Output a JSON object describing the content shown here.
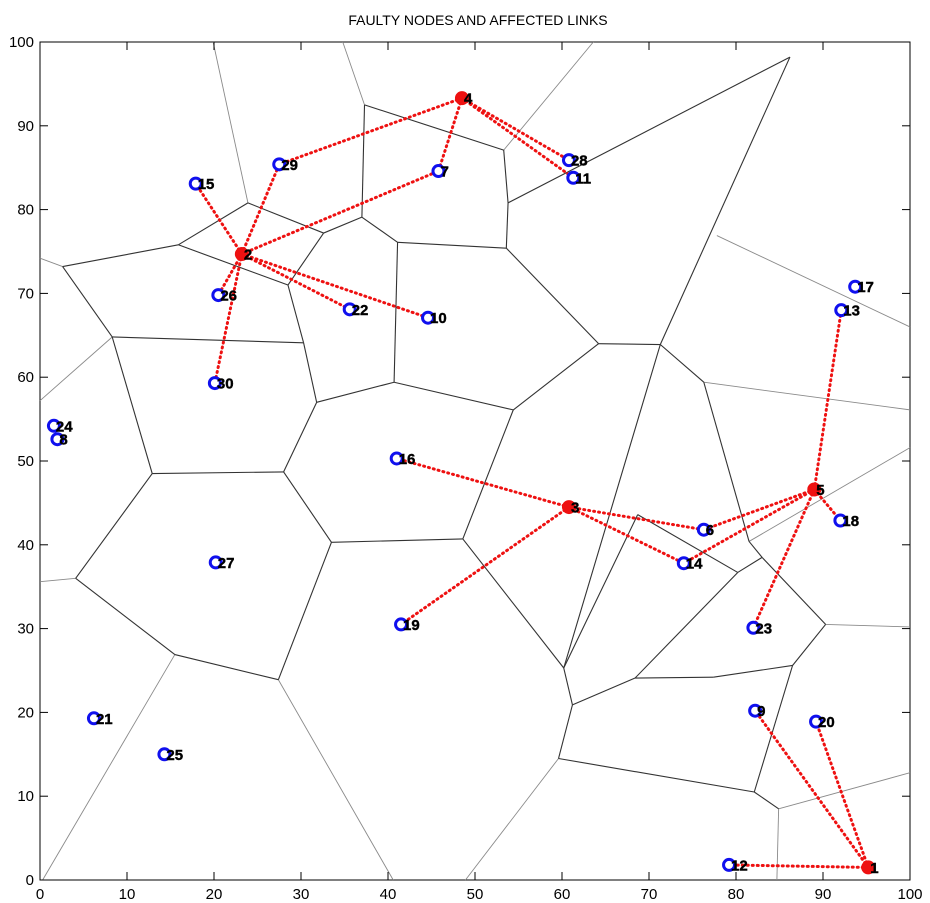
{
  "chart_data": {
    "type": "scatter",
    "title": "FAULTY NODES AND AFFECTED LINKS",
    "xlabel": "",
    "ylabel": "",
    "xlim": [
      0,
      100
    ],
    "ylim": [
      0,
      100
    ],
    "xticks": [
      0,
      10,
      20,
      30,
      40,
      50,
      60,
      70,
      80,
      90,
      100
    ],
    "yticks": [
      0,
      10,
      20,
      30,
      40,
      50,
      60,
      70,
      80,
      90,
      100
    ],
    "grid": false,
    "colors": {
      "normal": "#1010ee",
      "faulty": "#ee1111",
      "link": "#ee1111",
      "cell_edge": "#333333"
    },
    "nodes": [
      {
        "id": "1",
        "label": "1",
        "x": 95.2,
        "y": 1.5,
        "faulty": true
      },
      {
        "id": "2",
        "label": "2",
        "x": 23.2,
        "y": 74.7,
        "faulty": true
      },
      {
        "id": "3",
        "label": "3",
        "x": 60.8,
        "y": 44.5,
        "faulty": true
      },
      {
        "id": "4",
        "label": "4",
        "x": 48.5,
        "y": 93.3,
        "faulty": true
      },
      {
        "id": "5",
        "label": "5",
        "x": 89.0,
        "y": 46.6,
        "faulty": true
      },
      {
        "id": "6",
        "label": "6",
        "x": 76.3,
        "y": 41.8,
        "faulty": false
      },
      {
        "id": "7",
        "label": "7",
        "x": 45.8,
        "y": 84.6,
        "faulty": false
      },
      {
        "id": "8",
        "label": "8",
        "x": 2.0,
        "y": 52.6,
        "faulty": false
      },
      {
        "id": "9",
        "label": "9",
        "x": 82.2,
        "y": 20.2,
        "faulty": false
      },
      {
        "id": "10",
        "label": "10",
        "x": 44.6,
        "y": 67.1,
        "faulty": false
      },
      {
        "id": "11",
        "label": "11",
        "x": 61.3,
        "y": 83.8,
        "faulty": false
      },
      {
        "id": "12",
        "label": "12",
        "x": 79.2,
        "y": 1.8,
        "faulty": false
      },
      {
        "id": "13",
        "label": "13",
        "x": 92.1,
        "y": 68.0,
        "faulty": false
      },
      {
        "id": "14",
        "label": "14",
        "x": 74.0,
        "y": 37.8,
        "faulty": false
      },
      {
        "id": "15",
        "label": "15",
        "x": 17.9,
        "y": 83.1,
        "faulty": false
      },
      {
        "id": "16",
        "label": "16",
        "x": 41.0,
        "y": 50.3,
        "faulty": false
      },
      {
        "id": "17",
        "label": "17",
        "x": 93.7,
        "y": 70.8,
        "faulty": false
      },
      {
        "id": "18",
        "label": "18",
        "x": 92.0,
        "y": 42.9,
        "faulty": false
      },
      {
        "id": "19",
        "label": "19",
        "x": 41.5,
        "y": 30.5,
        "faulty": false
      },
      {
        "id": "20",
        "label": "20",
        "x": 89.2,
        "y": 18.9,
        "faulty": false
      },
      {
        "id": "21",
        "label": "21",
        "x": 6.2,
        "y": 19.3,
        "faulty": false
      },
      {
        "id": "22",
        "label": "22",
        "x": 35.6,
        "y": 68.1,
        "faulty": false
      },
      {
        "id": "23",
        "label": "23",
        "x": 82.0,
        "y": 30.1,
        "faulty": false
      },
      {
        "id": "24",
        "label": "24",
        "x": 1.6,
        "y": 54.2,
        "faulty": false
      },
      {
        "id": "25",
        "label": "25",
        "x": 14.3,
        "y": 15.0,
        "faulty": false
      },
      {
        "id": "26",
        "label": "26",
        "x": 20.5,
        "y": 69.8,
        "faulty": false
      },
      {
        "id": "27",
        "label": "27",
        "x": 20.2,
        "y": 37.9,
        "faulty": false
      },
      {
        "id": "28",
        "label": "28",
        "x": 60.8,
        "y": 85.9,
        "faulty": false
      },
      {
        "id": "29",
        "label": "29",
        "x": 27.5,
        "y": 85.4,
        "faulty": false
      },
      {
        "id": "30",
        "label": "30",
        "x": 20.1,
        "y": 59.3,
        "faulty": false
      }
    ],
    "links": [
      [
        "4",
        "29"
      ],
      [
        "4",
        "7"
      ],
      [
        "4",
        "28"
      ],
      [
        "4",
        "11"
      ],
      [
        "2",
        "15"
      ],
      [
        "2",
        "29"
      ],
      [
        "2",
        "7"
      ],
      [
        "2",
        "26"
      ],
      [
        "2",
        "22"
      ],
      [
        "2",
        "10"
      ],
      [
        "2",
        "30"
      ],
      [
        "3",
        "16"
      ],
      [
        "3",
        "19"
      ],
      [
        "3",
        "6"
      ],
      [
        "3",
        "14"
      ],
      [
        "5",
        "13"
      ],
      [
        "5",
        "6"
      ],
      [
        "5",
        "14"
      ],
      [
        "5",
        "18"
      ],
      [
        "5",
        "23"
      ],
      [
        "1",
        "9"
      ],
      [
        "1",
        "20"
      ],
      [
        "1",
        "12"
      ]
    ],
    "voronoi_edges": [
      [
        [
          2.6,
          73.2
        ],
        [
          15.9,
          75.8
        ]
      ],
      [
        [
          15.9,
          75.8
        ],
        [
          23.9,
          80.8
        ]
      ],
      [
        [
          23.9,
          80.8
        ],
        [
          32.6,
          77.2
        ]
      ],
      [
        [
          32.6,
          77.2
        ],
        [
          37.0,
          79.1
        ]
      ],
      [
        [
          37.0,
          79.1
        ],
        [
          41.1,
          76.1
        ]
      ],
      [
        [
          41.1,
          76.1
        ],
        [
          53.6,
          75.4
        ]
      ],
      [
        [
          53.6,
          75.4
        ],
        [
          64.2,
          64.0
        ]
      ],
      [
        [
          64.2,
          64.0
        ],
        [
          71.3,
          63.9
        ]
      ],
      [
        [
          71.3,
          63.9
        ],
        [
          76.3,
          59.4
        ]
      ],
      [
        [
          76.3,
          59.4
        ],
        [
          81.5,
          40.4
        ]
      ],
      [
        [
          81.5,
          40.4
        ],
        [
          83.0,
          38.5
        ]
      ],
      [
        [
          83.0,
          38.5
        ],
        [
          90.3,
          30.5
        ]
      ],
      [
        [
          90.3,
          30.5
        ],
        [
          86.5,
          25.6
        ]
      ],
      [
        [
          86.5,
          25.6
        ],
        [
          77.4,
          24.2
        ]
      ],
      [
        [
          77.4,
          24.2
        ],
        [
          68.4,
          24.1
        ]
      ],
      [
        [
          68.4,
          24.1
        ],
        [
          61.2,
          20.9
        ]
      ],
      [
        [
          61.2,
          20.9
        ],
        [
          59.6,
          14.5
        ]
      ],
      [
        [
          59.6,
          14.5
        ],
        [
          82.1,
          10.5
        ]
      ],
      [
        [
          82.1,
          10.5
        ],
        [
          84.9,
          8.5
        ]
      ],
      [
        [
          82.1,
          10.5
        ],
        [
          86.5,
          25.6
        ]
      ],
      [
        [
          2.6,
          73.2
        ],
        [
          8.3,
          64.8
        ]
      ],
      [
        [
          8.3,
          64.8
        ],
        [
          30.3,
          64.1
        ]
      ],
      [
        [
          30.3,
          64.1
        ],
        [
          31.8,
          57.0
        ]
      ],
      [
        [
          31.8,
          57.0
        ],
        [
          40.7,
          59.4
        ]
      ],
      [
        [
          40.7,
          59.4
        ],
        [
          54.4,
          56.1
        ]
      ],
      [
        [
          54.4,
          56.1
        ],
        [
          64.2,
          64.0
        ]
      ],
      [
        [
          8.3,
          64.8
        ],
        [
          12.9,
          48.5
        ]
      ],
      [
        [
          12.9,
          48.5
        ],
        [
          28.0,
          48.7
        ]
      ],
      [
        [
          28.0,
          48.7
        ],
        [
          31.8,
          57.0
        ]
      ],
      [
        [
          12.9,
          48.5
        ],
        [
          4.1,
          36.0
        ]
      ],
      [
        [
          4.1,
          36.0
        ],
        [
          15.5,
          26.9
        ]
      ],
      [
        [
          15.5,
          26.9
        ],
        [
          27.4,
          23.9
        ]
      ],
      [
        [
          27.4,
          23.9
        ],
        [
          33.5,
          40.3
        ]
      ],
      [
        [
          33.5,
          40.3
        ],
        [
          28.0,
          48.7
        ]
      ],
      [
        [
          33.5,
          40.3
        ],
        [
          48.6,
          40.7
        ]
      ],
      [
        [
          48.6,
          40.7
        ],
        [
          54.4,
          56.1
        ]
      ],
      [
        [
          48.6,
          40.7
        ],
        [
          60.2,
          25.3
        ]
      ],
      [
        [
          60.2,
          25.3
        ],
        [
          61.2,
          20.9
        ]
      ],
      [
        [
          60.2,
          25.3
        ],
        [
          71.3,
          63.9
        ]
      ],
      [
        [
          60.2,
          25.3
        ],
        [
          68.7,
          43.6
        ]
      ],
      [
        [
          68.7,
          43.6
        ],
        [
          80.2,
          36.7
        ]
      ],
      [
        [
          80.2,
          36.7
        ],
        [
          83.0,
          38.5
        ]
      ],
      [
        [
          80.2,
          36.7
        ],
        [
          68.4,
          24.1
        ]
      ],
      [
        [
          37.0,
          79.1
        ],
        [
          37.3,
          92.5
        ]
      ],
      [
        [
          37.3,
          92.5
        ],
        [
          53.3,
          87.1
        ]
      ],
      [
        [
          53.3,
          87.1
        ],
        [
          53.8,
          80.8
        ]
      ],
      [
        [
          53.8,
          80.8
        ],
        [
          53.6,
          75.4
        ]
      ],
      [
        [
          53.8,
          80.8
        ],
        [
          86.2,
          98.2
        ]
      ],
      [
        [
          86.2,
          98.2
        ],
        [
          71.3,
          63.9
        ]
      ],
      [
        [
          41.1,
          76.1
        ],
        [
          40.7,
          59.4
        ]
      ],
      [
        [
          15.9,
          75.8
        ],
        [
          28.5,
          71.0
        ]
      ],
      [
        [
          28.5,
          71.0
        ],
        [
          32.6,
          77.2
        ]
      ],
      [
        [
          28.5,
          71.0
        ],
        [
          30.3,
          64.1
        ]
      ]
    ],
    "voronoi_outer_edges": [
      [
        [
          0.0,
          74.2
        ],
        [
          2.6,
          73.2
        ]
      ],
      [
        [
          23.9,
          80.8
        ],
        [
          19.9,
          100.0
        ]
      ],
      [
        [
          37.3,
          92.5
        ],
        [
          34.8,
          100.0
        ]
      ],
      [
        [
          53.3,
          87.1
        ],
        [
          63.6,
          100.0
        ]
      ],
      [
        [
          8.3,
          64.8
        ],
        [
          0.0,
          57.2
        ]
      ],
      [
        [
          76.3,
          59.4
        ],
        [
          100.0,
          56.1
        ]
      ],
      [
        [
          77.8,
          76.9
        ],
        [
          100.0,
          66.0
        ]
      ],
      [
        [
          81.5,
          40.4
        ],
        [
          100.0,
          51.6
        ]
      ],
      [
        [
          90.3,
          30.5
        ],
        [
          100.0,
          30.2
        ]
      ],
      [
        [
          84.9,
          8.5
        ],
        [
          100.0,
          12.8
        ]
      ],
      [
        [
          84.9,
          8.5
        ],
        [
          84.7,
          0.0
        ]
      ],
      [
        [
          59.6,
          14.5
        ],
        [
          48.9,
          0.0
        ]
      ],
      [
        [
          27.4,
          23.9
        ],
        [
          40.6,
          0.0
        ]
      ],
      [
        [
          15.5,
          26.9
        ],
        [
          0.3,
          0.0
        ]
      ],
      [
        [
          4.1,
          36.0
        ],
        [
          0.0,
          35.6
        ]
      ]
    ]
  }
}
